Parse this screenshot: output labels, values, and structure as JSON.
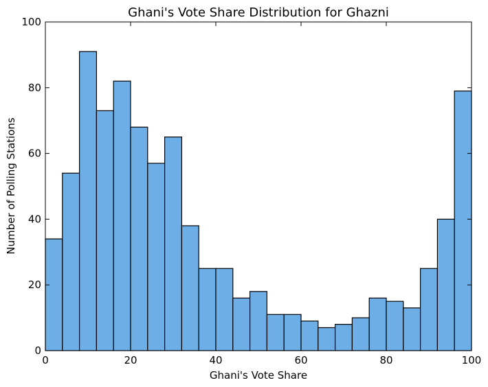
{
  "chart_data": {
    "type": "bar",
    "title": "Ghani's Vote Share Distribution for Ghazni",
    "xlabel": "Ghani's Vote Share",
    "ylabel": "Number of Polling Stations",
    "xlim": [
      0,
      100
    ],
    "ylim": [
      0,
      100
    ],
    "xticks": [
      0,
      20,
      40,
      60,
      80,
      100
    ],
    "yticks": [
      0,
      20,
      40,
      60,
      80,
      100
    ],
    "grid": false,
    "bar_color": "#6daee6",
    "edge_color": "#000000",
    "bins": [
      {
        "x0": 0,
        "x1": 4,
        "value": 34
      },
      {
        "x0": 4,
        "x1": 8,
        "value": 54
      },
      {
        "x0": 8,
        "x1": 12,
        "value": 91
      },
      {
        "x0": 12,
        "x1": 16,
        "value": 73
      },
      {
        "x0": 16,
        "x1": 20,
        "value": 82
      },
      {
        "x0": 20,
        "x1": 24,
        "value": 68
      },
      {
        "x0": 24,
        "x1": 28,
        "value": 57
      },
      {
        "x0": 28,
        "x1": 32,
        "value": 65
      },
      {
        "x0": 32,
        "x1": 36,
        "value": 38
      },
      {
        "x0": 36,
        "x1": 40,
        "value": 25
      },
      {
        "x0": 40,
        "x1": 44,
        "value": 25
      },
      {
        "x0": 44,
        "x1": 48,
        "value": 16
      },
      {
        "x0": 48,
        "x1": 52,
        "value": 18
      },
      {
        "x0": 52,
        "x1": 56,
        "value": 11
      },
      {
        "x0": 56,
        "x1": 60,
        "value": 11
      },
      {
        "x0": 60,
        "x1": 64,
        "value": 9
      },
      {
        "x0": 64,
        "x1": 68,
        "value": 7
      },
      {
        "x0": 68,
        "x1": 72,
        "value": 8
      },
      {
        "x0": 72,
        "x1": 76,
        "value": 10
      },
      {
        "x0": 76,
        "x1": 80,
        "value": 16
      },
      {
        "x0": 80,
        "x1": 84,
        "value": 15
      },
      {
        "x0": 84,
        "x1": 88,
        "value": 13
      },
      {
        "x0": 88,
        "x1": 92,
        "value": 25
      },
      {
        "x0": 92,
        "x1": 96,
        "value": 40
      },
      {
        "x0": 96,
        "x1": 100,
        "value": 79
      }
    ]
  }
}
